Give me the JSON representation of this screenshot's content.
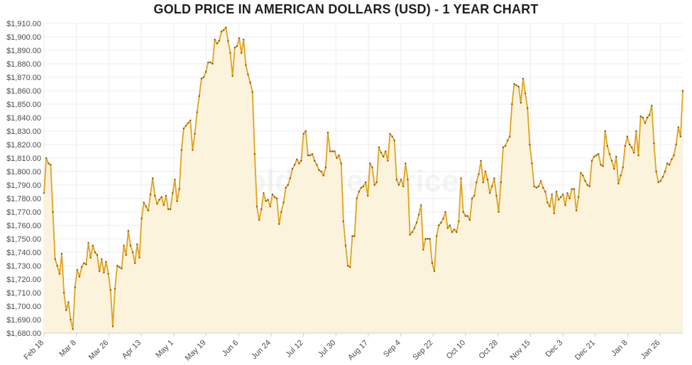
{
  "chart_data": {
    "type": "area",
    "title": "GOLD PRICE IN AMERICAN DOLLARS (USD) - 1 YEAR CHART",
    "xlabel": "",
    "ylabel": "",
    "ylim": [
      1680,
      1910
    ],
    "y_tick_step": 10,
    "y_tick_prefix": "$",
    "x_tick_labels": [
      "Feb 18",
      "Mar 8",
      "Mar 26",
      "Apr 13",
      "May 1",
      "May 19",
      "Jun 6",
      "Jun 24",
      "Jul 12",
      "Jul 30",
      "Aug 17",
      "Sep 4",
      "Sep 22",
      "Oct 10",
      "Oct 28",
      "Nov 15",
      "Dec 3",
      "Dec 21",
      "Jan 8",
      "Jan 26"
    ],
    "grid": true,
    "legend": "none",
    "colors": {
      "line": "#e3a21a",
      "fill": "#fbf3dc",
      "marker": "#7a5a14"
    },
    "watermark_text": "Goldsilver price.eu",
    "series": [
      {
        "values": [
          1784,
          1810,
          1806,
          1805,
          1770,
          1735,
          1730,
          1724,
          1739,
          1710,
          1697,
          1703,
          1690,
          1683,
          1714,
          1727,
          1722,
          1729,
          1732,
          1731,
          1747,
          1736,
          1745,
          1740,
          1738,
          1726,
          1735,
          1725,
          1733,
          1724,
          1712,
          1685,
          1713,
          1730,
          1729,
          1728,
          1745,
          1738,
          1756,
          1745,
          1740,
          1732,
          1746,
          1736,
          1765,
          1777,
          1774,
          1771,
          1783,
          1795,
          1782,
          1776,
          1779,
          1781,
          1775,
          1782,
          1772,
          1772,
          1784,
          1794,
          1778,
          1787,
          1816,
          1832,
          1834,
          1836,
          1838,
          1816,
          1828,
          1844,
          1856,
          1869,
          1870,
          1874,
          1881,
          1881,
          1880,
          1898,
          1895,
          1897,
          1904,
          1905,
          1907,
          1897,
          1888,
          1871,
          1892,
          1893,
          1899,
          1888,
          1898,
          1879,
          1872,
          1866,
          1859,
          1813,
          1774,
          1764,
          1772,
          1784,
          1778,
          1779,
          1774,
          1783,
          1781,
          1780,
          1761,
          1770,
          1777,
          1788,
          1790,
          1795,
          1802,
          1805,
          1809,
          1806,
          1808,
          1828,
          1830,
          1812,
          1812,
          1813,
          1808,
          1805,
          1801,
          1800,
          1797,
          1803,
          1829,
          1815,
          1815,
          1815,
          1810,
          1812,
          1806,
          1763,
          1745,
          1730,
          1729,
          1752,
          1752,
          1780,
          1785,
          1788,
          1789,
          1792,
          1782,
          1806,
          1803,
          1790,
          1792,
          1818,
          1814,
          1811,
          1815,
          1808,
          1828,
          1826,
          1823,
          1794,
          1790,
          1794,
          1789,
          1806,
          1794,
          1753,
          1755,
          1758,
          1762,
          1768,
          1775,
          1742,
          1750,
          1750,
          1750,
          1732,
          1726,
          1752,
          1760,
          1762,
          1765,
          1770,
          1758,
          1760,
          1755,
          1757,
          1755,
          1763,
          1795,
          1770,
          1767,
          1767,
          1764,
          1780,
          1782,
          1792,
          1798,
          1808,
          1792,
          1800,
          1794,
          1784,
          1789,
          1795,
          1782,
          1770,
          1792,
          1818,
          1819,
          1823,
          1826,
          1850,
          1865,
          1864,
          1863,
          1851,
          1869,
          1858,
          1847,
          1820,
          1806,
          1789,
          1788,
          1789,
          1793,
          1788,
          1785,
          1777,
          1774,
          1783,
          1769,
          1785,
          1779,
          1781,
          1783,
          1775,
          1784,
          1780,
          1787,
          1787,
          1771,
          1781,
          1799,
          1797,
          1793,
          1790,
          1789,
          1808,
          1811,
          1812,
          1813,
          1805,
          1804,
          1830,
          1819,
          1813,
          1808,
          1802,
          1811,
          1791,
          1797,
          1803,
          1819,
          1826,
          1820,
          1818,
          1814,
          1830,
          1812,
          1841,
          1840,
          1836,
          1840,
          1842,
          1849,
          1821,
          1800,
          1792,
          1793,
          1796,
          1800,
          1806,
          1805,
          1809,
          1812,
          1820,
          1833,
          1826,
          1860
        ]
      }
    ]
  }
}
